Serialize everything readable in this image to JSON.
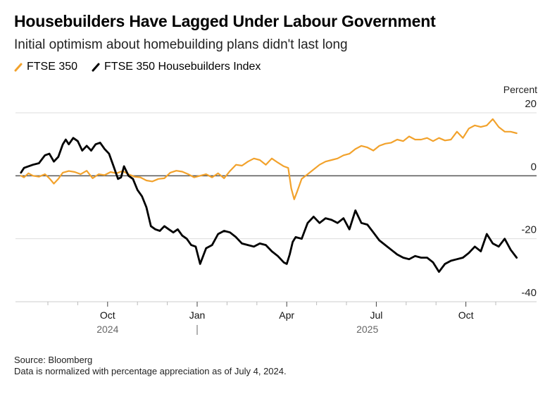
{
  "title": "Housebuilders Have Lagged Under Labour Government",
  "subtitle": "Initial optimism about homebuilding plans didn't last long",
  "legend": [
    {
      "label": "FTSE 350",
      "color": "#f2a22c"
    },
    {
      "label": "FTSE 350 Housebuilders Index",
      "color": "#000000"
    }
  ],
  "footer": {
    "source": "Source: Bloomberg",
    "note": "Data is normalized with percentage appreciation as of July 4, 2024."
  },
  "chart_data": {
    "type": "line",
    "title": "Housebuilders Have Lagged Under Labour Government",
    "subtitle": "Initial optimism about homebuilding plans didn't last long",
    "ylabel": "Percent",
    "xlabel": "",
    "x_unit": "months since Jul 1, 2024",
    "ylim": [
      -40,
      20
    ],
    "xlim": [
      -0.1,
      17.5
    ],
    "yticks": [
      20,
      0,
      -20,
      -40
    ],
    "y_axis_side": "right",
    "grid": true,
    "legend_position": "top-left",
    "x_ticks": [
      {
        "m": 1,
        "label": ""
      },
      {
        "m": 2,
        "label": ""
      },
      {
        "m": 3,
        "label": "Oct"
      },
      {
        "m": 4,
        "label": ""
      },
      {
        "m": 5,
        "label": ""
      },
      {
        "m": 6,
        "label": "Jan"
      },
      {
        "m": 7,
        "label": ""
      },
      {
        "m": 8,
        "label": ""
      },
      {
        "m": 9,
        "label": "Apr"
      },
      {
        "m": 10,
        "label": ""
      },
      {
        "m": 11,
        "label": ""
      },
      {
        "m": 12,
        "label": "Jul"
      },
      {
        "m": 13,
        "label": ""
      },
      {
        "m": 14,
        "label": ""
      },
      {
        "m": 15,
        "label": "Oct"
      },
      {
        "m": 16,
        "label": ""
      }
    ],
    "year_labels": [
      {
        "m": 3,
        "label": "2024"
      },
      {
        "m": 11.7,
        "label": "2025"
      }
    ],
    "year_divider_m": 6,
    "series": [
      {
        "name": "FTSE 350",
        "color": "#f2a22c",
        "x": [
          0.1,
          0.2,
          0.35,
          0.5,
          0.7,
          0.9,
          1.05,
          1.2,
          1.35,
          1.5,
          1.7,
          1.9,
          2.1,
          2.3,
          2.5,
          2.7,
          2.9,
          3.1,
          3.3,
          3.5,
          3.7,
          3.9,
          4.1,
          4.3,
          4.5,
          4.7,
          4.9,
          5.1,
          5.3,
          5.5,
          5.7,
          5.9,
          6.1,
          6.3,
          6.5,
          6.7,
          6.9,
          7.1,
          7.3,
          7.5,
          7.7,
          7.9,
          8.1,
          8.3,
          8.5,
          8.7,
          8.9,
          9.05,
          9.15,
          9.25,
          9.35,
          9.5,
          9.7,
          9.9,
          10.1,
          10.3,
          10.5,
          10.7,
          10.9,
          11.1,
          11.3,
          11.5,
          11.7,
          11.9,
          12.1,
          12.3,
          12.5,
          12.7,
          12.9,
          13.1,
          13.3,
          13.5,
          13.7,
          13.9,
          14.1,
          14.3,
          14.5,
          14.7,
          14.9,
          15.1,
          15.3,
          15.5,
          15.7,
          15.9,
          16.1,
          16.3,
          16.5,
          16.7
        ],
        "values": [
          0,
          -0.5,
          0.8,
          0,
          -0.3,
          0.5,
          -0.8,
          -2.5,
          -1,
          1,
          1.5,
          1.2,
          0.5,
          1.6,
          -0.8,
          0.5,
          0.2,
          1.2,
          0.8,
          1.5,
          0.5,
          -0.3,
          -0.5,
          -1.5,
          -1.8,
          -1,
          -0.8,
          1,
          1.6,
          1.3,
          0.5,
          -0.5,
          0,
          0.5,
          -0.5,
          0.8,
          -0.8,
          1.5,
          3.5,
          3.2,
          4.5,
          5.5,
          5,
          3.5,
          5.5,
          4.2,
          3,
          2.5,
          -4,
          -7.5,
          -5,
          -1,
          0.5,
          2,
          3.5,
          4.5,
          5,
          5.5,
          6.5,
          7,
          8.5,
          9.5,
          9,
          8,
          9.5,
          10.2,
          10.5,
          11.5,
          11,
          12.5,
          11.5,
          11.5,
          12,
          11,
          12,
          11.2,
          11.5,
          14,
          12,
          15,
          16,
          15.5,
          16,
          18,
          15.5,
          14,
          14,
          13.5
        ],
        "note": "FTSE 350 appreciation (%)"
      },
      {
        "name": "FTSE 350 Housebuilders Index",
        "color": "#000000",
        "x": [
          0.1,
          0.2,
          0.35,
          0.5,
          0.7,
          0.9,
          1.05,
          1.2,
          1.35,
          1.5,
          1.6,
          1.7,
          1.85,
          2.0,
          2.15,
          2.3,
          2.45,
          2.6,
          2.75,
          2.9,
          3.05,
          3.2,
          3.35,
          3.45,
          3.55,
          3.7,
          3.85,
          4.0,
          4.15,
          4.3,
          4.45,
          4.6,
          4.75,
          4.9,
          5.05,
          5.2,
          5.35,
          5.5,
          5.65,
          5.8,
          5.95,
          6.1,
          6.3,
          6.5,
          6.7,
          6.9,
          7.1,
          7.3,
          7.5,
          7.7,
          7.9,
          8.1,
          8.3,
          8.5,
          8.7,
          8.9,
          9.0,
          9.1,
          9.2,
          9.3,
          9.5,
          9.7,
          9.9,
          10.1,
          10.3,
          10.5,
          10.7,
          10.9,
          11.1,
          11.3,
          11.5,
          11.7,
          11.9,
          12.1,
          12.3,
          12.5,
          12.7,
          12.9,
          13.1,
          13.3,
          13.5,
          13.7,
          13.9,
          14.1,
          14.3,
          14.5,
          14.7,
          14.9,
          15.1,
          15.3,
          15.5,
          15.7,
          15.9,
          16.1,
          16.3,
          16.5,
          16.7
        ],
        "values": [
          1,
          2.5,
          3,
          3.5,
          4,
          6.5,
          7,
          4.5,
          6,
          10,
          11.5,
          10,
          12,
          11,
          8,
          9.5,
          8,
          10,
          10.5,
          8.5,
          7,
          3,
          -1,
          -0.5,
          3,
          0,
          -1,
          -4.5,
          -6.5,
          -10,
          -16,
          -17,
          -17.5,
          -16,
          -17,
          -18,
          -17,
          -19,
          -20,
          -22,
          -22.5,
          -28,
          -23,
          -22,
          -18.5,
          -17.5,
          -18,
          -19.5,
          -21.5,
          -22,
          -22.5,
          -21.5,
          -22,
          -24,
          -25.5,
          -27.5,
          -28,
          -25,
          -21,
          -19.5,
          -20,
          -15,
          -13,
          -15,
          -13.5,
          -14,
          -15,
          -13.5,
          -17,
          -11,
          -15,
          -15.5,
          -18,
          -20.5,
          -22,
          -23.5,
          -25,
          -26,
          -26.5,
          -25.5,
          -26,
          -26,
          -27.5,
          -30.5,
          -28,
          -27,
          -26.5,
          -26,
          -24.5,
          -22.5,
          -24,
          -18.5,
          -21.5,
          -22.5,
          -20,
          -23.5,
          -26
        ]
      }
    ]
  }
}
